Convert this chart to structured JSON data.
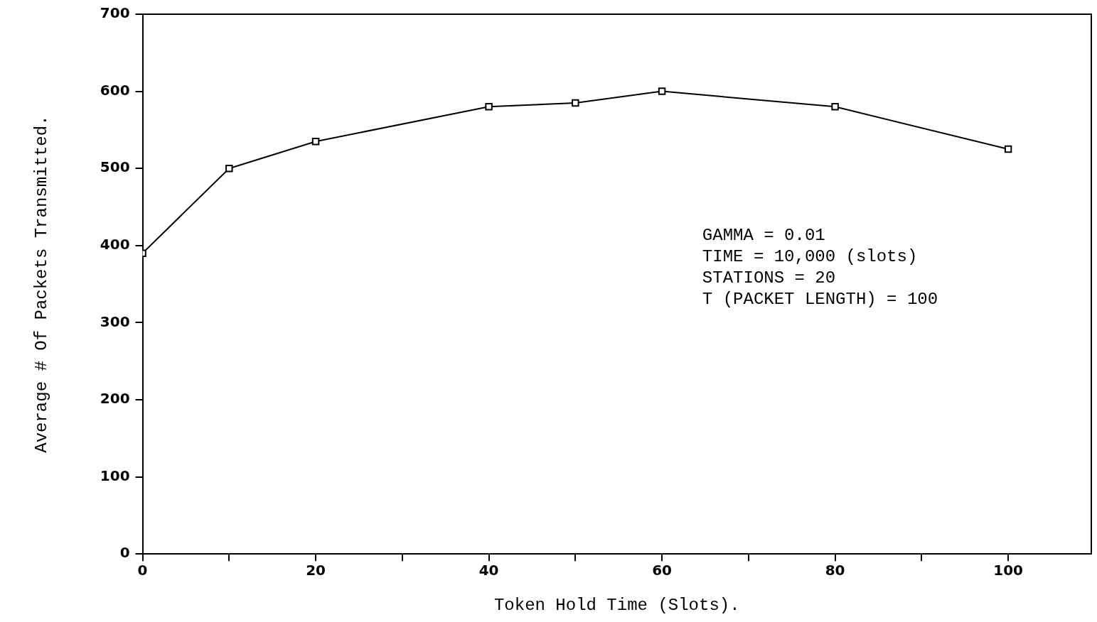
{
  "chart_data": {
    "type": "line",
    "xlabel": "Token Hold Time (Slots).",
    "ylabel": "Average # Of Packets Transmitted.",
    "x": [
      0,
      10,
      20,
      40,
      50,
      60,
      80,
      100
    ],
    "series": [
      {
        "color": "#000000",
        "values": [
          390,
          500,
          535,
          580,
          585,
          600,
          580,
          525
        ]
      }
    ],
    "xlim": [
      0,
      109.6
    ],
    "xticks": [
      0,
      {
        "value": 10,
        "label": null
      },
      20,
      {
        "value": 30,
        "label": null
      },
      40,
      {
        "value": 50,
        "label": null
      },
      60,
      {
        "value": 70,
        "label": null
      },
      80,
      {
        "value": 90,
        "label": null
      },
      100
    ],
    "ylim": [
      0,
      700
    ],
    "yticks": [
      0,
      100,
      200,
      300,
      400,
      500,
      600,
      700
    ],
    "grid": false,
    "legend": false,
    "marker": "square",
    "line_style": "solid",
    "annotations": [
      "GAMMA = 0.01",
      "TIME = 10,000 (slots)",
      "STATIONS = 20",
      "T (PACKET LENGTH) = 100"
    ]
  }
}
